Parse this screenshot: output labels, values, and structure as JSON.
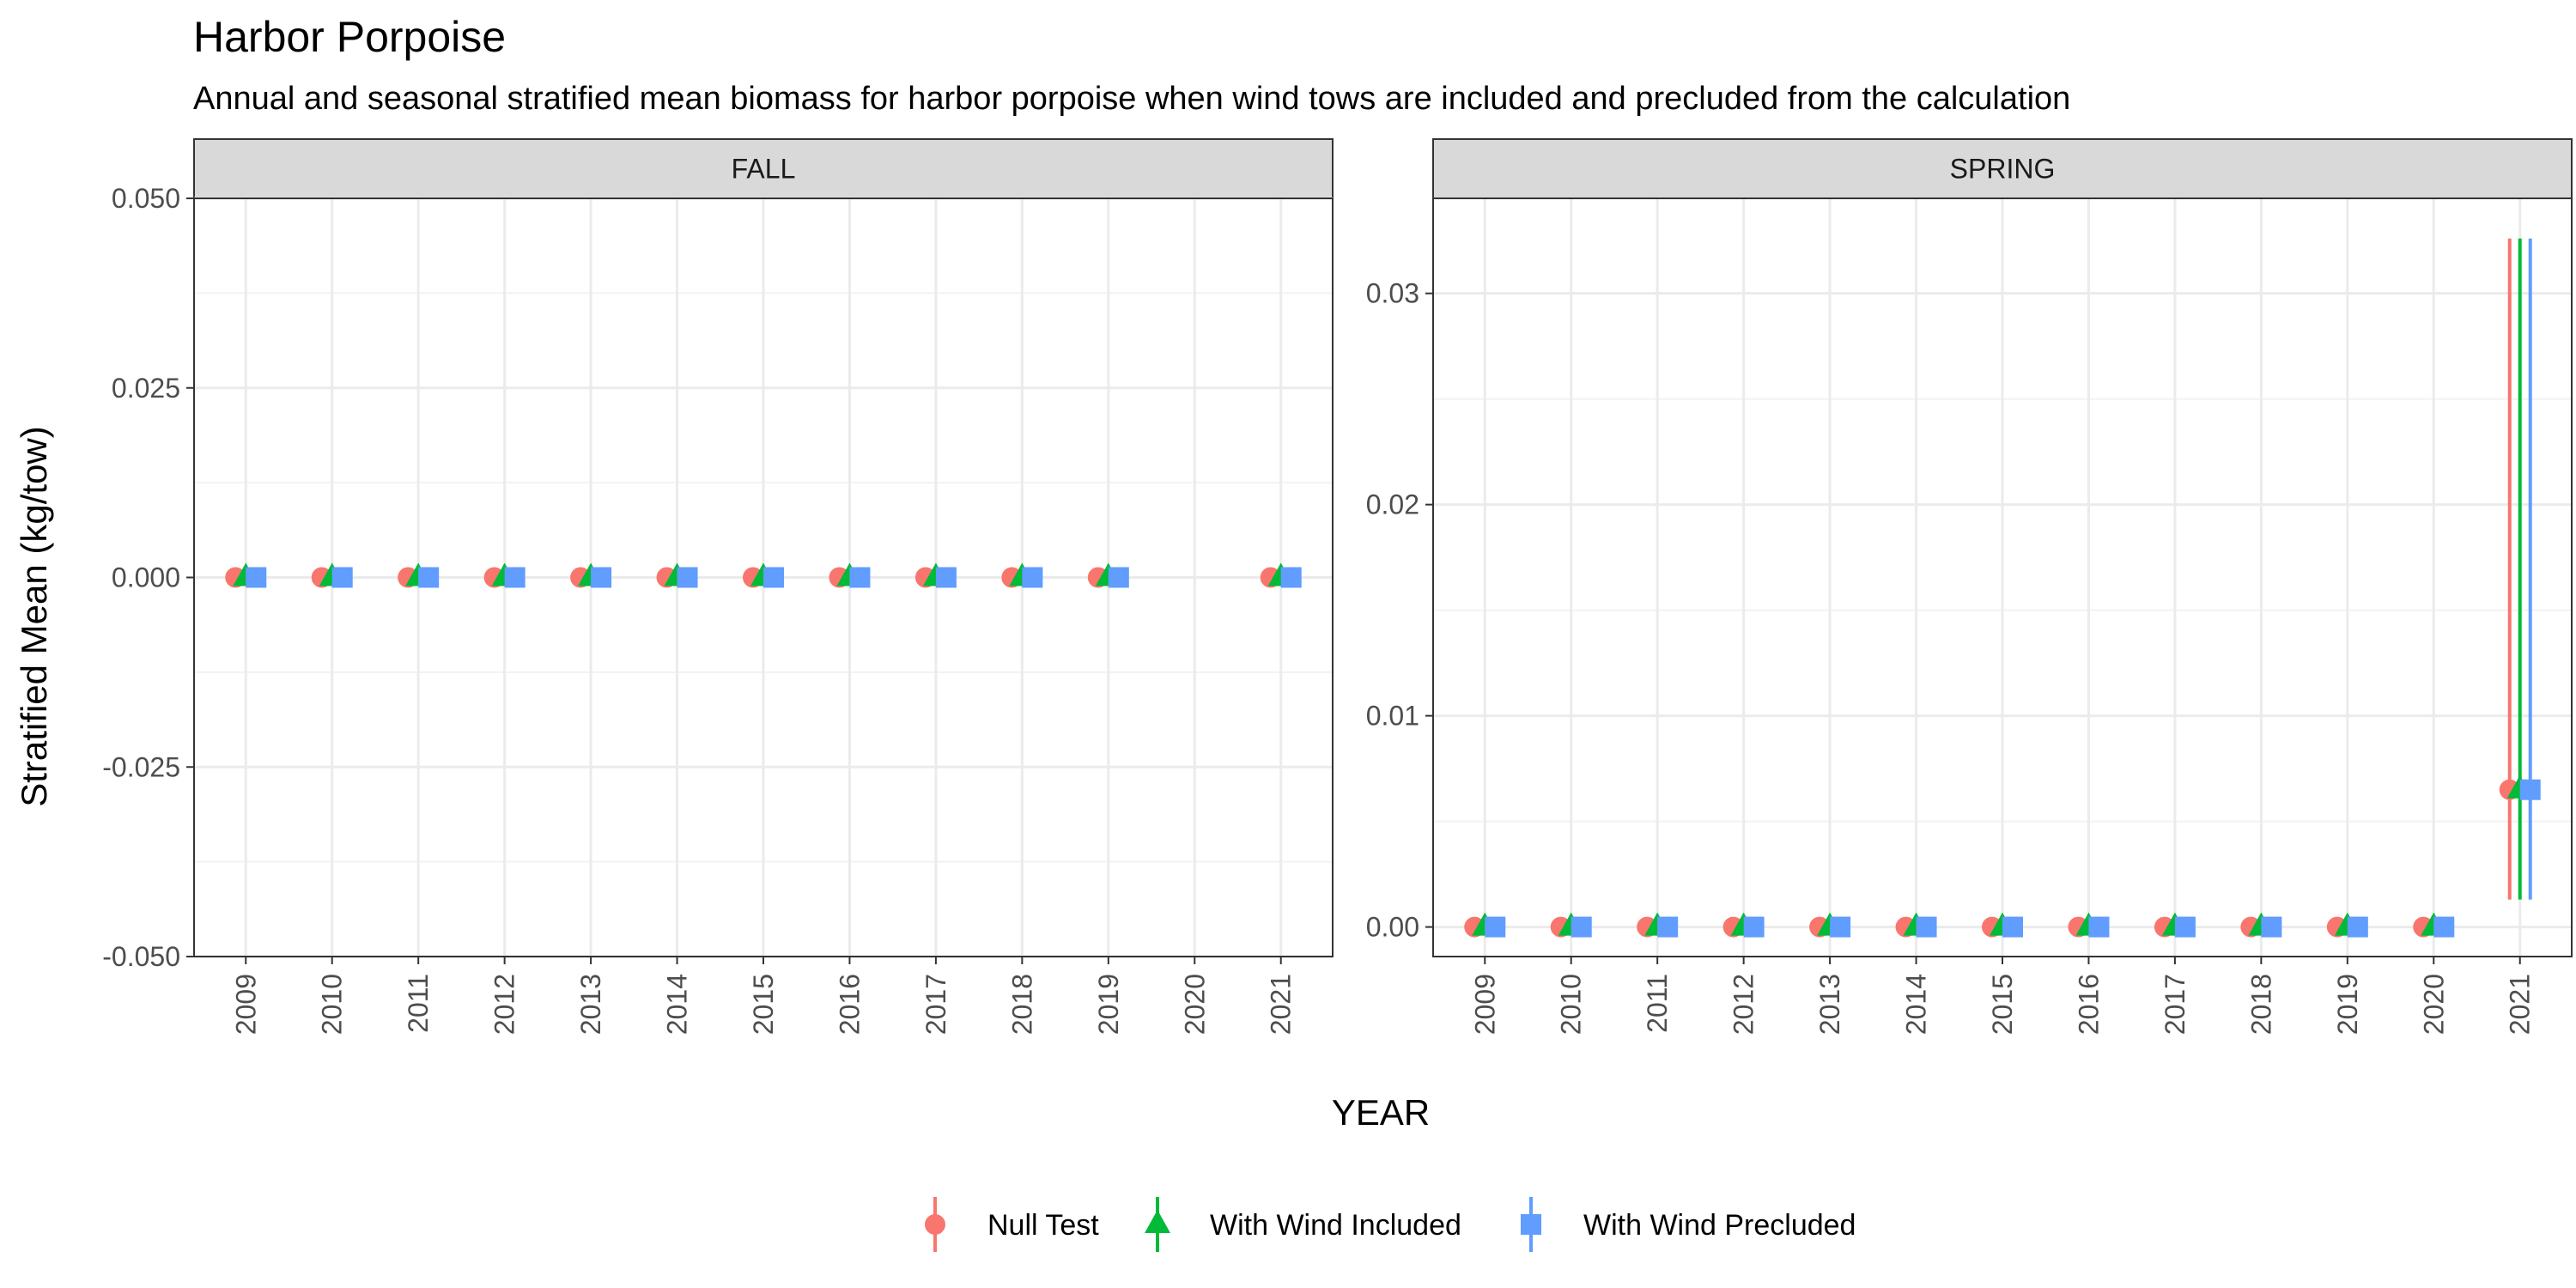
{
  "title": "Harbor Porpoise",
  "subtitle": "Annual and seasonal stratified mean biomass for harbor porpoise when wind tows are included and precluded from the calculation",
  "chart_data": {
    "type": "scatter",
    "xlabel": "YEAR",
    "ylabel": "Stratified Mean (kg/tow)",
    "categories": [
      "2009",
      "2010",
      "2011",
      "2012",
      "2013",
      "2014",
      "2015",
      "2016",
      "2017",
      "2018",
      "2019",
      "2020",
      "2021"
    ],
    "legend_position": "bottom",
    "grid": true,
    "series_styles": [
      {
        "name": "Null Test",
        "color": "#F8766D",
        "shape": "circle"
      },
      {
        "name": "With Wind Included",
        "color": "#00BA38",
        "shape": "triangle"
      },
      {
        "name": "With Wind Precluded",
        "color": "#619CFF",
        "shape": "square"
      }
    ],
    "panels": [
      {
        "strip": "FALL",
        "ylim": [
          -0.05,
          0.05
        ],
        "yticks": [
          -0.05,
          -0.025,
          0,
          0.025,
          0.05
        ],
        "ytick_labels": [
          "-0.050",
          "-0.025",
          "0.000",
          "0.025",
          "0.050"
        ],
        "series": [
          {
            "name": "Null Test",
            "points": [
              {
                "x": "2009",
                "y": 0
              },
              {
                "x": "2010",
                "y": 0
              },
              {
                "x": "2011",
                "y": 0
              },
              {
                "x": "2012",
                "y": 0
              },
              {
                "x": "2013",
                "y": 0
              },
              {
                "x": "2014",
                "y": 0
              },
              {
                "x": "2015",
                "y": 0
              },
              {
                "x": "2016",
                "y": 0
              },
              {
                "x": "2017",
                "y": 0
              },
              {
                "x": "2018",
                "y": 0
              },
              {
                "x": "2019",
                "y": 0
              },
              {
                "x": "2021",
                "y": 0
              }
            ]
          },
          {
            "name": "With Wind Included",
            "points": [
              {
                "x": "2009",
                "y": 0
              },
              {
                "x": "2010",
                "y": 0
              },
              {
                "x": "2011",
                "y": 0
              },
              {
                "x": "2012",
                "y": 0
              },
              {
                "x": "2013",
                "y": 0
              },
              {
                "x": "2014",
                "y": 0
              },
              {
                "x": "2015",
                "y": 0
              },
              {
                "x": "2016",
                "y": 0
              },
              {
                "x": "2017",
                "y": 0
              },
              {
                "x": "2018",
                "y": 0
              },
              {
                "x": "2019",
                "y": 0
              },
              {
                "x": "2021",
                "y": 0
              }
            ]
          },
          {
            "name": "With Wind Precluded",
            "points": [
              {
                "x": "2009",
                "y": 0
              },
              {
                "x": "2010",
                "y": 0
              },
              {
                "x": "2011",
                "y": 0
              },
              {
                "x": "2012",
                "y": 0
              },
              {
                "x": "2013",
                "y": 0
              },
              {
                "x": "2014",
                "y": 0
              },
              {
                "x": "2015",
                "y": 0
              },
              {
                "x": "2016",
                "y": 0
              },
              {
                "x": "2017",
                "y": 0
              },
              {
                "x": "2018",
                "y": 0
              },
              {
                "x": "2019",
                "y": 0
              },
              {
                "x": "2021",
                "y": 0
              }
            ]
          }
        ]
      },
      {
        "strip": "SPRING",
        "ylim": [
          -0.0014,
          0.0345
        ],
        "yticks": [
          0,
          0.01,
          0.02,
          0.03
        ],
        "ytick_labels": [
          "0.00",
          "0.01",
          "0.02",
          "0.03"
        ],
        "series": [
          {
            "name": "Null Test",
            "points": [
              {
                "x": "2009",
                "y": 0
              },
              {
                "x": "2010",
                "y": 0
              },
              {
                "x": "2011",
                "y": 0
              },
              {
                "x": "2012",
                "y": 0
              },
              {
                "x": "2013",
                "y": 0
              },
              {
                "x": "2014",
                "y": 0
              },
              {
                "x": "2015",
                "y": 0
              },
              {
                "x": "2016",
                "y": 0
              },
              {
                "x": "2017",
                "y": 0
              },
              {
                "x": "2018",
                "y": 0
              },
              {
                "x": "2019",
                "y": 0
              },
              {
                "x": "2020",
                "y": 0
              },
              {
                "x": "2021",
                "y": 0.0065,
                "ymin": 0.0013,
                "ymax": 0.0326
              }
            ]
          },
          {
            "name": "With Wind Included",
            "points": [
              {
                "x": "2009",
                "y": 0
              },
              {
                "x": "2010",
                "y": 0
              },
              {
                "x": "2011",
                "y": 0
              },
              {
                "x": "2012",
                "y": 0
              },
              {
                "x": "2013",
                "y": 0
              },
              {
                "x": "2014",
                "y": 0
              },
              {
                "x": "2015",
                "y": 0
              },
              {
                "x": "2016",
                "y": 0
              },
              {
                "x": "2017",
                "y": 0
              },
              {
                "x": "2018",
                "y": 0
              },
              {
                "x": "2019",
                "y": 0
              },
              {
                "x": "2020",
                "y": 0
              },
              {
                "x": "2021",
                "y": 0.0065,
                "ymin": 0.0013,
                "ymax": 0.0326
              }
            ]
          },
          {
            "name": "With Wind Precluded",
            "points": [
              {
                "x": "2009",
                "y": 0
              },
              {
                "x": "2010",
                "y": 0
              },
              {
                "x": "2011",
                "y": 0
              },
              {
                "x": "2012",
                "y": 0
              },
              {
                "x": "2013",
                "y": 0
              },
              {
                "x": "2014",
                "y": 0
              },
              {
                "x": "2015",
                "y": 0
              },
              {
                "x": "2016",
                "y": 0
              },
              {
                "x": "2017",
                "y": 0
              },
              {
                "x": "2018",
                "y": 0
              },
              {
                "x": "2019",
                "y": 0
              },
              {
                "x": "2020",
                "y": 0
              },
              {
                "x": "2021",
                "y": 0.0065,
                "ymin": 0.0013,
                "ymax": 0.0326
              }
            ]
          }
        ]
      }
    ]
  }
}
